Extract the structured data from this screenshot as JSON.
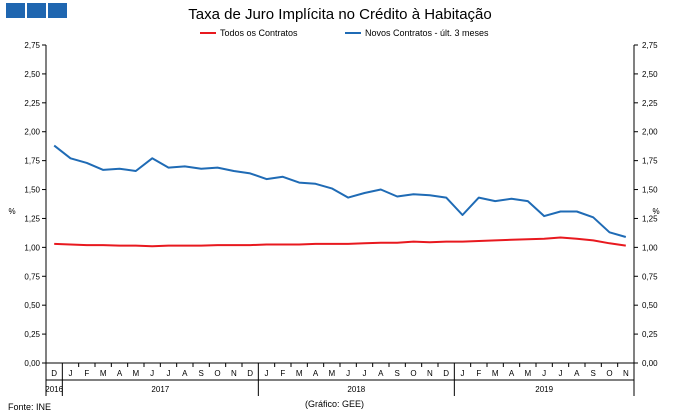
{
  "header": {
    "logo_icon": "gee-logo-blocks",
    "title": "Taxa de Juro Implícita no Crédito à Habitação"
  },
  "footer": {
    "source": "Fonte: INE",
    "credit": "(Gráfico: GEE)"
  },
  "chart_data": {
    "type": "line",
    "title": "Taxa de Juro Implícita no Crédito à Habitação",
    "ylabel": "%",
    "ylabel_right": "%",
    "ylim": [
      0,
      2.75
    ],
    "yticks": [
      "0,00",
      "0,25",
      "0,50",
      "0,75",
      "1,00",
      "1,25",
      "1,50",
      "1,75",
      "2,00",
      "2,25",
      "2,50",
      "2,75"
    ],
    "grid": false,
    "legend_position": "top",
    "x": [
      "D",
      "J",
      "F",
      "M",
      "A",
      "M",
      "J",
      "J",
      "A",
      "S",
      "O",
      "N",
      "D",
      "J",
      "F",
      "M",
      "A",
      "M",
      "J",
      "J",
      "A",
      "S",
      "O",
      "N",
      "D",
      "J",
      "F",
      "M",
      "A",
      "M",
      "J",
      "J",
      "A",
      "S",
      "O",
      "N"
    ],
    "years": [
      {
        "label": "2016",
        "start": 0,
        "end": 0
      },
      {
        "label": "2017",
        "start": 1,
        "end": 12
      },
      {
        "label": "2018",
        "start": 13,
        "end": 24
      },
      {
        "label": "2019",
        "start": 25,
        "end": 35
      }
    ],
    "series": [
      {
        "name": "Todos os Contratos",
        "color": "#e8191f",
        "values": [
          1.03,
          1.025,
          1.02,
          1.02,
          1.015,
          1.015,
          1.01,
          1.015,
          1.015,
          1.015,
          1.02,
          1.02,
          1.02,
          1.025,
          1.025,
          1.025,
          1.03,
          1.03,
          1.03,
          1.035,
          1.04,
          1.04,
          1.05,
          1.045,
          1.05,
          1.05,
          1.055,
          1.06,
          1.065,
          1.07,
          1.075,
          1.085,
          1.075,
          1.06,
          1.035,
          1.015
        ]
      },
      {
        "name": "Novos Contratos - últ. 3 meses",
        "color": "#1f6bb5",
        "values": [
          1.88,
          1.77,
          1.73,
          1.67,
          1.68,
          1.66,
          1.77,
          1.69,
          1.7,
          1.68,
          1.69,
          1.66,
          1.64,
          1.59,
          1.61,
          1.56,
          1.55,
          1.51,
          1.43,
          1.47,
          1.5,
          1.44,
          1.46,
          1.45,
          1.43,
          1.28,
          1.43,
          1.4,
          1.42,
          1.4,
          1.27,
          1.31,
          1.31,
          1.26,
          1.13,
          1.09
        ]
      }
    ]
  }
}
